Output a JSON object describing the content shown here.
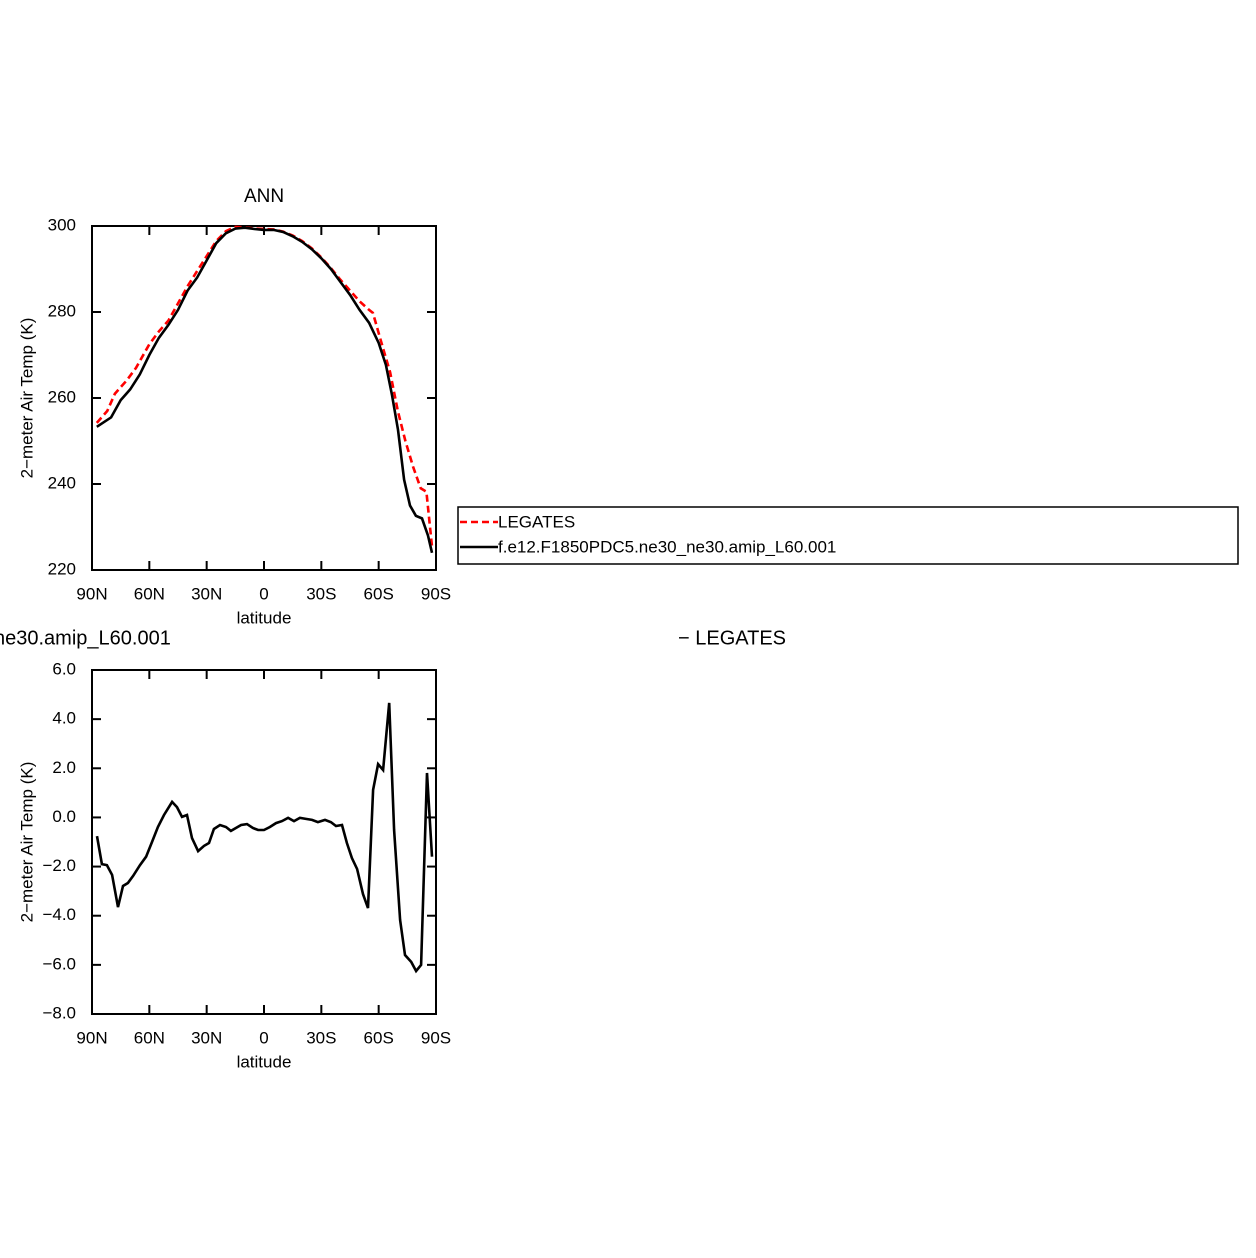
{
  "chart_data": [
    {
      "type": "line",
      "title": "ANN",
      "xlabel": "latitude",
      "ylabel": "2−meter Air Temp (K)",
      "xlim": [
        90,
        -90
      ],
      "xticks": [
        {
          "value": 90,
          "label": "90N"
        },
        {
          "value": 60,
          "label": "60N"
        },
        {
          "value": 30,
          "label": "30N"
        },
        0,
        {
          "value": -30,
          "label": "30S"
        },
        {
          "value": -60,
          "label": "60S"
        },
        {
          "value": -90,
          "label": "90S"
        }
      ],
      "ylim": [
        220,
        300
      ],
      "yticks": [
        220,
        240,
        260,
        280,
        300
      ],
      "legend": "right",
      "series": [
        {
          "name": "LEGATES",
          "color": "#ff0000",
          "dash": true,
          "x": [
            87.5,
            82,
            78,
            72,
            67,
            60,
            55,
            50,
            45,
            40,
            35,
            30,
            25,
            20,
            15,
            10,
            5,
            0,
            -5,
            -10,
            -15,
            -20,
            -25,
            -30,
            -35,
            -40,
            -45,
            -50,
            -55,
            -57,
            -62,
            -66,
            -70,
            -74,
            -78,
            -82,
            -85,
            -88
          ],
          "values": [
            254.2,
            257,
            261,
            264,
            267,
            272.5,
            275.5,
            278,
            282,
            286,
            289.5,
            293,
            296.5,
            298.8,
            299.8,
            299.7,
            299.4,
            299.3,
            299.2,
            298.7,
            297.8,
            296.5,
            294.8,
            292.7,
            290.2,
            287.5,
            285,
            282.5,
            280.5,
            279.8,
            272,
            266,
            257,
            250,
            244,
            239,
            238.2,
            225
          ]
        },
        {
          "name": "f.e12.F1850PDC5.ne30_ne30.amip_L60.001",
          "color": "#000000",
          "dash": false,
          "x": [
            87.5,
            80,
            75,
            70,
            65,
            60,
            55,
            50,
            45,
            40,
            35,
            30,
            25,
            20,
            15,
            10,
            5,
            0,
            -5,
            -10,
            -15,
            -20,
            -25,
            -30,
            -35,
            -40,
            -45,
            -50,
            -55,
            -60,
            -63.8,
            -67,
            -70.1,
            -73.3,
            -76.4,
            -79.5,
            -82.7,
            -85.8,
            -87.9
          ],
          "values": [
            253.3,
            255.5,
            259.5,
            262,
            265.5,
            270,
            274,
            277,
            280.5,
            285,
            288,
            292,
            296,
            298.3,
            299.4,
            299.6,
            299.3,
            299.1,
            299.1,
            298.6,
            297.6,
            296.3,
            294.6,
            292.5,
            290,
            287,
            284,
            280.5,
            277.5,
            272.8,
            267.7,
            260.7,
            252.6,
            241,
            235,
            232.6,
            232,
            228,
            224
          ]
        }
      ]
    },
    {
      "type": "line",
      "title": "ne30.amip_L60.001",
      "title_right": "−  LEGATES",
      "xlabel": "latitude",
      "ylabel": "2−meter Air Temp (K)",
      "xlim": [
        90,
        -90
      ],
      "xticks": [
        {
          "value": 90,
          "label": "90N"
        },
        {
          "value": 60,
          "label": "60N"
        },
        {
          "value": 30,
          "label": "30N"
        },
        0,
        {
          "value": -30,
          "label": "30S"
        },
        {
          "value": -60,
          "label": "60S"
        },
        {
          "value": -90,
          "label": "90S"
        }
      ],
      "ylim": [
        -8,
        6
      ],
      "yticks": [
        {
          "value": -8,
          "label": "−8.0"
        },
        {
          "value": -6,
          "label": "−6.0"
        },
        {
          "value": -4,
          "label": "−4.0"
        },
        {
          "value": -2,
          "label": "−2.0"
        },
        {
          "value": 0,
          "label": "0.0"
        },
        {
          "value": 2,
          "label": "2.0"
        },
        {
          "value": 4,
          "label": "4.0"
        },
        {
          "value": 6,
          "label": "6.0"
        }
      ],
      "series": [
        {
          "color": "#000000",
          "dash": false,
          "x": [
            87.4,
            84.8,
            82.2,
            79.5,
            76.4,
            73.8,
            71.2,
            68.5,
            64.9,
            61.7,
            58.6,
            55.5,
            52.3,
            48.1,
            45.5,
            42.9,
            40.3,
            37.7,
            34.5,
            31.4,
            28.8,
            26.2,
            23.0,
            19.9,
            17.3,
            14.7,
            12.0,
            8.9,
            5.8,
            3.1,
            0,
            -3.1,
            -6.3,
            -9.4,
            -12.6,
            -15.7,
            -18.8,
            -21.9,
            -25.1,
            -28.2,
            -31.9,
            -35.0,
            -37.7,
            -40.8,
            -43.4,
            -46.0,
            -48.7,
            -51.8,
            -54.4,
            -57.1,
            -59.7,
            -62.3,
            -65.5,
            -68.1,
            -71.2,
            -73.8,
            -77.0,
            -79.6,
            -82.2,
            -85.3,
            -87.9
          ],
          "values": [
            -0.76,
            -1.9,
            -1.94,
            -2.34,
            -3.65,
            -2.79,
            -2.67,
            -2.38,
            -1.94,
            -1.6,
            -1.0,
            -0.39,
            0.1,
            0.63,
            0.42,
            0.02,
            0.1,
            -0.84,
            -1.37,
            -1.16,
            -1.04,
            -0.47,
            -0.31,
            -0.39,
            -0.55,
            -0.43,
            -0.31,
            -0.27,
            -0.43,
            -0.51,
            -0.51,
            -0.39,
            -0.23,
            -0.15,
            -0.02,
            -0.15,
            -0.02,
            -0.06,
            -0.1,
            -0.19,
            -0.1,
            -0.19,
            -0.35,
            -0.31,
            -1.04,
            -1.65,
            -2.1,
            -3.12,
            -3.69,
            1.12,
            2.17,
            1.93,
            4.66,
            -0.51,
            -4.17,
            -5.6,
            -5.88,
            -6.25,
            -6.0,
            1.81,
            -1.6
          ]
        }
      ]
    }
  ]
}
